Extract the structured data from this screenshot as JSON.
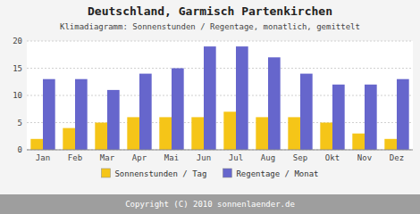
{
  "chart_data": {
    "type": "bar",
    "title": "Deutschland, Garmisch Partenkirchen",
    "subtitle": "Klimadiagramm: Sonnenstunden / Regentage, monatlich, gemittelt",
    "categories": [
      "Jan",
      "Feb",
      "Mar",
      "Apr",
      "Mai",
      "Jun",
      "Jul",
      "Aug",
      "Sep",
      "Okt",
      "Nov",
      "Dez"
    ],
    "series": [
      {
        "name": "Sonnenstunden / Tag",
        "color": "#F5C518",
        "values": [
          2,
          4,
          5,
          6,
          6,
          6,
          7,
          6,
          6,
          5,
          3,
          2
        ]
      },
      {
        "name": "Regentage / Monat",
        "color": "#6666CC",
        "values": [
          13,
          13,
          11,
          14,
          15,
          19,
          19,
          17,
          14,
          12,
          12,
          13
        ]
      }
    ],
    "ylim": [
      0,
      20
    ],
    "yticks": [
      0,
      5,
      10,
      15,
      20
    ],
    "grid": true,
    "legend": "bottom",
    "annotations": [
      "Copyright (C) 2010 sonnenlaender.de"
    ]
  }
}
